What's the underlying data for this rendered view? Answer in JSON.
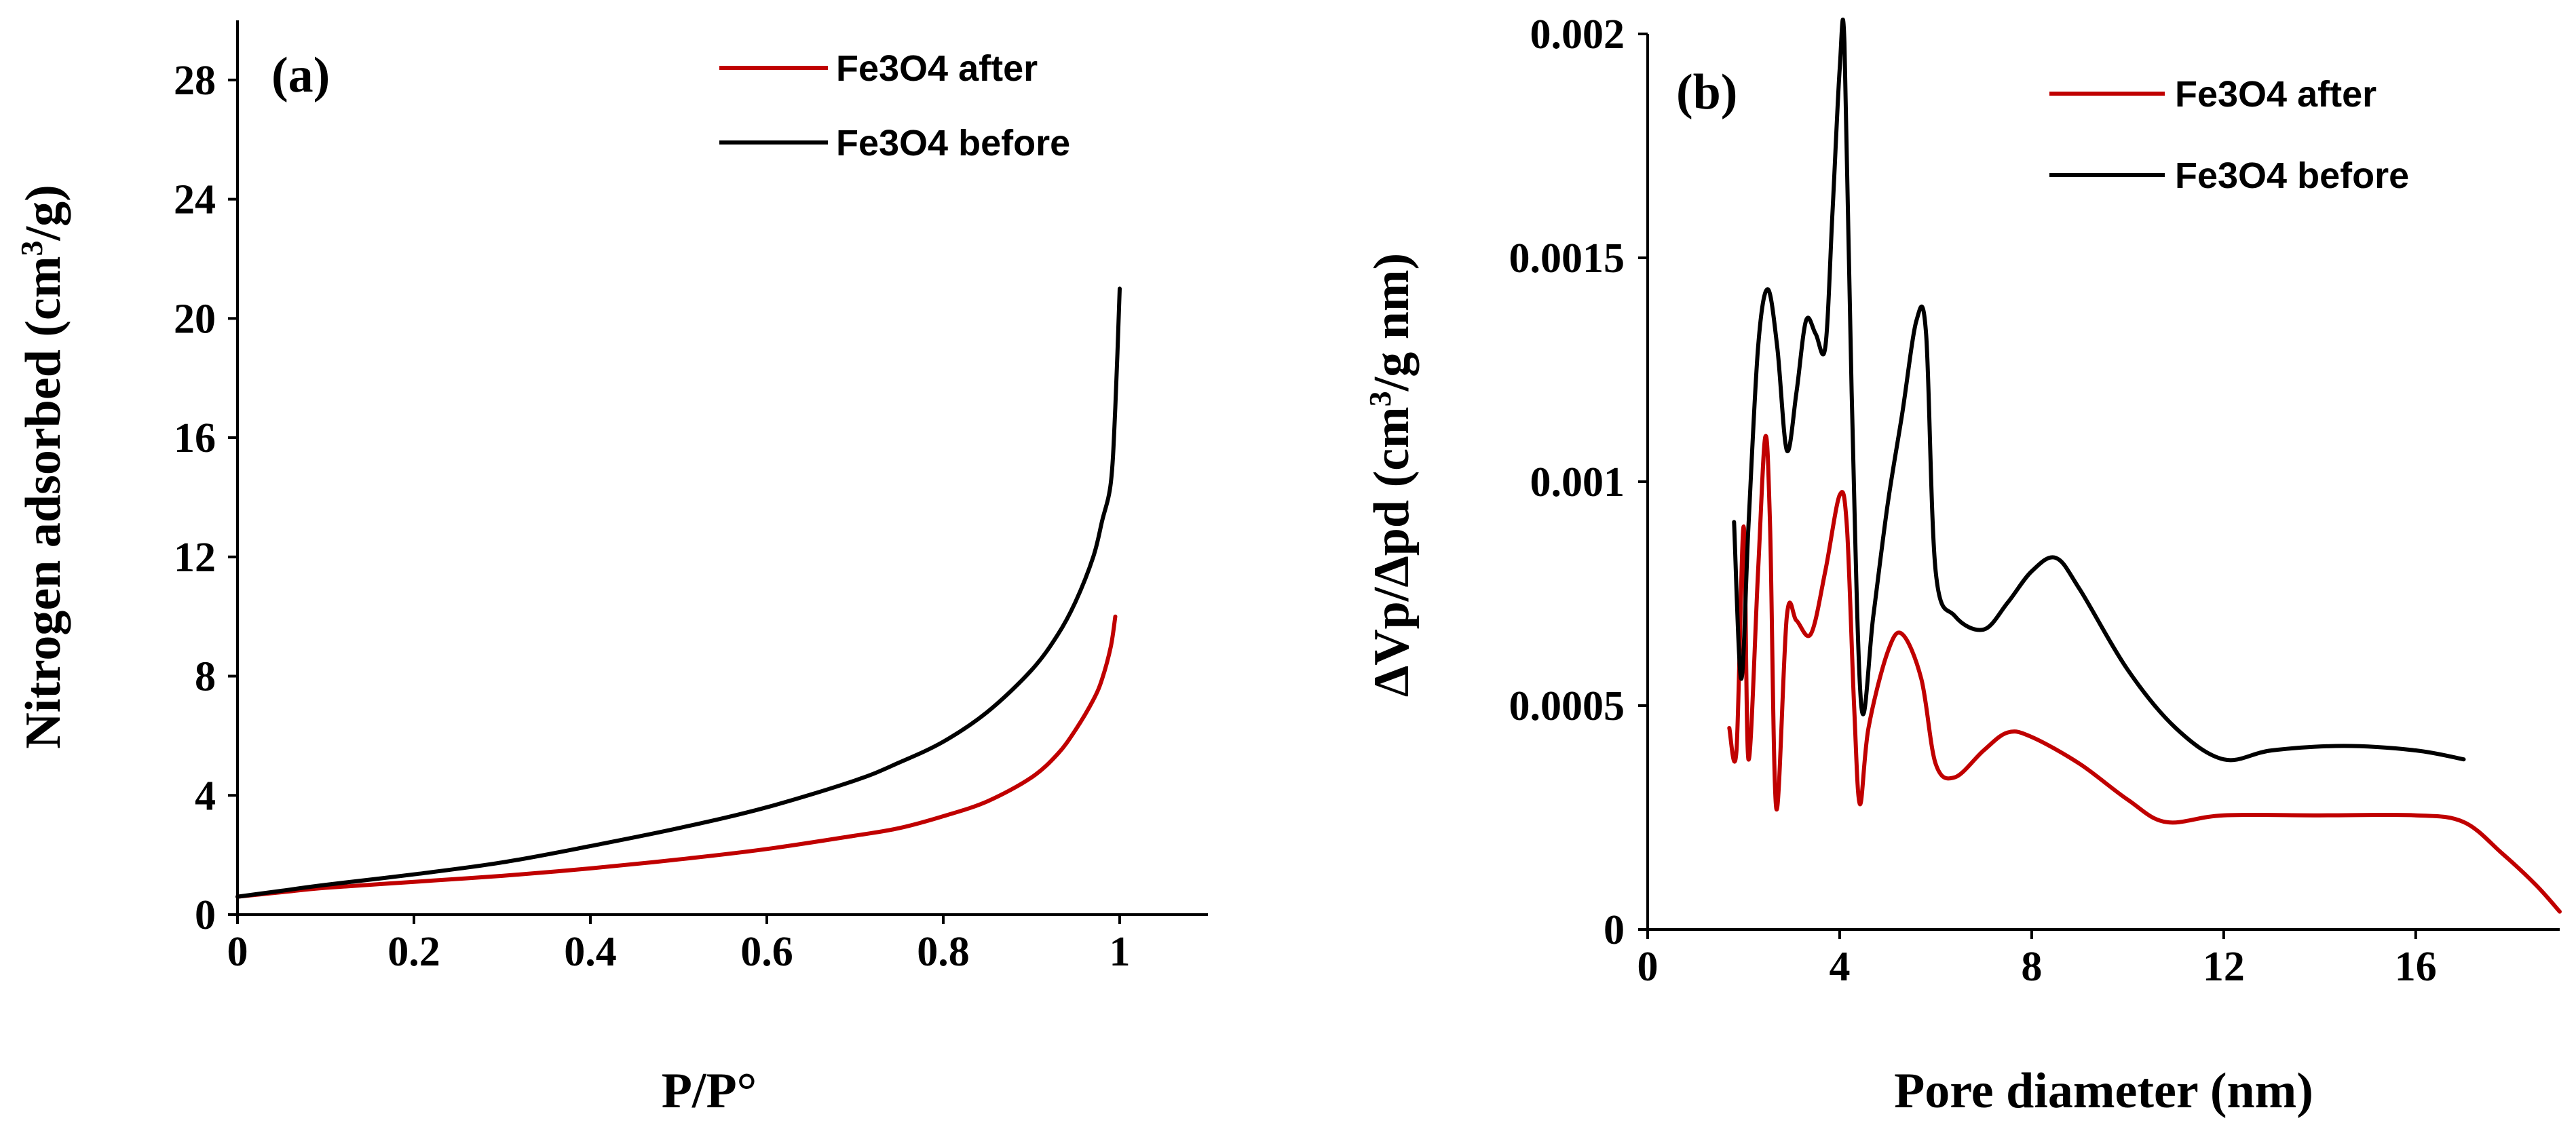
{
  "colors": {
    "after": "#c00000",
    "before": "#000000"
  },
  "chart_data": [
    {
      "type": "line",
      "panel_label": "(a)",
      "xlabel": "P/P°",
      "ylabel_main": "Nitrogen adsorbed (cm",
      "ylabel_sup": "3",
      "ylabel_tail": "/g)",
      "xlim": [
        0,
        1.1
      ],
      "ylim": [
        0,
        30
      ],
      "xticks": [
        0,
        0.2,
        0.4,
        0.6,
        0.8,
        1
      ],
      "xtick_labels": [
        "0",
        "0.2",
        "0.4",
        "0.6",
        "0.8",
        "1"
      ],
      "yticks": [
        0,
        4,
        8,
        12,
        16,
        20,
        24,
        28
      ],
      "ytick_labels": [
        "0",
        "4",
        "8",
        "12",
        "16",
        "20",
        "24",
        "28"
      ],
      "legend": [
        "Fe3O4 after",
        "Fe3O4 before"
      ],
      "series": [
        {
          "name": "Fe3O4 after",
          "x": [
            0,
            0.05,
            0.1,
            0.2,
            0.3,
            0.4,
            0.5,
            0.6,
            0.7,
            0.75,
            0.8,
            0.85,
            0.9,
            0.93,
            0.95,
            0.97,
            0.98,
            0.99,
            0.995
          ],
          "y": [
            0.6,
            0.75,
            0.9,
            1.1,
            1.3,
            1.55,
            1.85,
            2.2,
            2.65,
            2.9,
            3.3,
            3.8,
            4.6,
            5.4,
            6.2,
            7.2,
            7.9,
            9.0,
            10.0
          ]
        },
        {
          "name": "Fe3O4 before",
          "x": [
            0,
            0.05,
            0.1,
            0.2,
            0.3,
            0.4,
            0.5,
            0.6,
            0.7,
            0.75,
            0.8,
            0.85,
            0.9,
            0.93,
            0.95,
            0.97,
            0.98,
            0.99,
            0.995,
            1.0
          ],
          "y": [
            0.6,
            0.8,
            1.0,
            1.35,
            1.75,
            2.3,
            2.9,
            3.6,
            4.5,
            5.1,
            5.8,
            6.8,
            8.2,
            9.4,
            10.5,
            12.0,
            13.2,
            14.5,
            17.0,
            21.0
          ]
        }
      ]
    },
    {
      "type": "line",
      "panel_label": "(b)",
      "xlabel": "Pore diameter (nm)",
      "ylabel_main": "ΔVp/Δpd (cm",
      "ylabel_sup": "3",
      "ylabel_tail": "/g nm)",
      "xlim": [
        0,
        19
      ],
      "ylim": [
        0,
        0.002
      ],
      "xticks": [
        0,
        4,
        8,
        12,
        16
      ],
      "xtick_labels": [
        "0",
        "4",
        "8",
        "12",
        "16"
      ],
      "yticks": [
        0,
        0.0005,
        0.001,
        0.0015,
        0.002
      ],
      "ytick_labels": [
        "0",
        "0.0005",
        "0.001",
        "0.0015",
        "0.002"
      ],
      "legend": [
        "Fe3O4 after",
        "Fe3O4 before"
      ],
      "series": [
        {
          "name": "Fe3O4 after",
          "x": [
            1.7,
            1.85,
            2.0,
            2.1,
            2.3,
            2.45,
            2.55,
            2.68,
            2.9,
            3.1,
            3.4,
            3.7,
            4.0,
            4.15,
            4.3,
            4.42,
            4.6,
            5.0,
            5.3,
            5.7,
            6.0,
            6.4,
            7.0,
            7.5,
            8.0,
            9.0,
            10.0,
            10.8,
            12.0,
            14.0,
            16.0,
            17.0,
            17.8,
            18.5,
            19.0
          ],
          "y": [
            0.00045,
            0.0004,
            0.0009,
            0.00038,
            0.0008,
            0.0011,
            0.0009,
            0.00027,
            0.0007,
            0.00069,
            0.00066,
            0.0008,
            0.00097,
            0.0009,
            0.0005,
            0.00028,
            0.00045,
            0.00062,
            0.00066,
            0.00056,
            0.00037,
            0.00034,
            0.0004,
            0.00044,
            0.00043,
            0.00037,
            0.00029,
            0.00024,
            0.000255,
            0.000255,
            0.000255,
            0.00024,
            0.00017,
            0.0001,
            4e-05
          ]
        },
        {
          "name": "Fe3O4 before",
          "x": [
            1.8,
            1.95,
            2.1,
            2.3,
            2.5,
            2.7,
            2.9,
            3.1,
            3.3,
            3.5,
            3.7,
            3.85,
            4.0,
            4.1,
            4.25,
            4.45,
            4.7,
            5.0,
            5.3,
            5.6,
            5.8,
            6.0,
            6.4,
            7.0,
            7.5,
            8.0,
            8.5,
            9.0,
            10.0,
            11.0,
            12.0,
            13.0,
            14.5,
            16.0,
            17.0
          ],
          "y": [
            0.00091,
            0.00056,
            0.0009,
            0.0013,
            0.00143,
            0.0013,
            0.00107,
            0.0012,
            0.00136,
            0.00133,
            0.0013,
            0.0016,
            0.00192,
            0.00198,
            0.0012,
            0.0005,
            0.0007,
            0.00095,
            0.00115,
            0.00136,
            0.00133,
            0.0008,
            0.0007,
            0.00067,
            0.00073,
            0.0008,
            0.00083,
            0.00076,
            0.00058,
            0.00045,
            0.00038,
            0.0004,
            0.00041,
            0.0004,
            0.00038
          ]
        }
      ]
    }
  ]
}
